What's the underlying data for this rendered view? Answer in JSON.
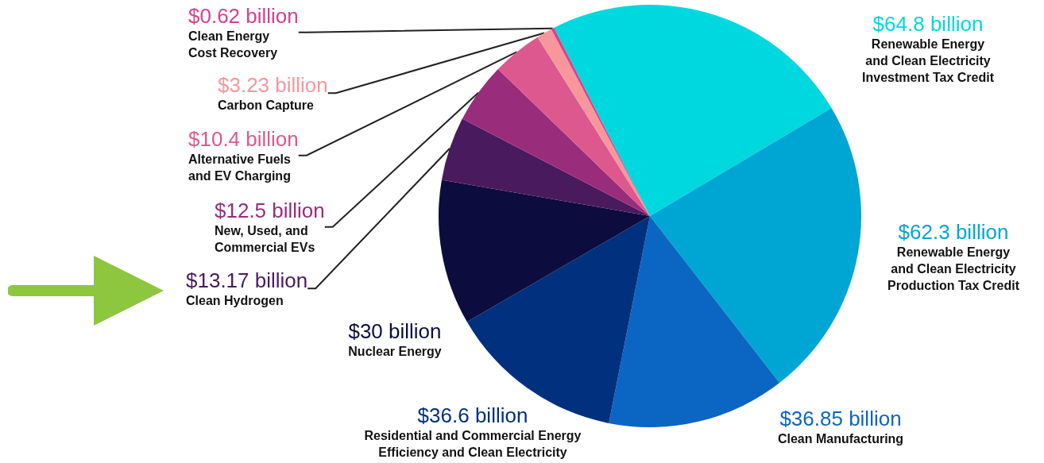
{
  "chart_data": {
    "type": "pie",
    "categories": [
      "Renewable Energy\nand Clean Electricity\nInvestment Tax Credit",
      "Renewable Energy\nand Clean Electricity\nProduction Tax Credit",
      "Clean Manufacturing",
      "Residential and Commercial Energy\nEfficiency and Clean Electricity",
      "Nuclear Energy",
      "Clean Hydrogen",
      "New, Used, and\nCommercial EVs",
      "Alternative Fuels\nand EV Charging",
      "Carbon Capture",
      "Clean Energy\nCost Recovery"
    ],
    "values": [
      64.8,
      62.3,
      36.85,
      36.6,
      30,
      13.17,
      12.5,
      10.4,
      3.23,
      0.62
    ],
    "value_labels": [
      "$64.8 billion",
      "$62.3 billion",
      "$36.85 billion",
      "$36.6 billion",
      "$30 billion",
      "$13.17 billion",
      "$12.5 billion",
      "$10.4 billion",
      "$3.23 billion",
      "$0.62 billion"
    ],
    "colors": [
      "#00d8e0",
      "#00a6d3",
      "#0b66c3",
      "#00307e",
      "#0c0d3e",
      "#4a1a5f",
      "#9a2c7c",
      "#de5890",
      "#f7979c",
      "#d8408c"
    ],
    "legend": false
  }
}
